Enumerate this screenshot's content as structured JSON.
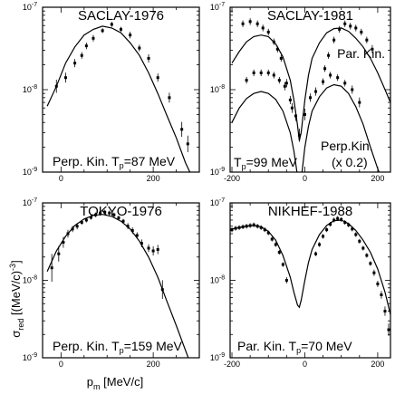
{
  "figure": {
    "ylabel_main": "σ",
    "ylabel_sub": "red",
    "ylabel_rest": " [(MeV/c)",
    "ylabel_sup": "-3",
    "ylabel_end": "]",
    "xlabel_main": "p",
    "xlabel_sub": "m",
    "xlabel_rest": " [MeV/c]"
  },
  "chart_data": [
    {
      "type": "scatter",
      "title": "SACLAY-1976",
      "annotations": [
        {
          "main": "Perp. Kin. T",
          "sub": "p",
          "rest": "=87 MeV"
        }
      ],
      "xlim": [
        -40,
        300
      ],
      "ylim_log": [
        -9,
        -7
      ],
      "x_ticks": [
        "0",
        "200"
      ],
      "x_tick_values": [
        0,
        200
      ],
      "y_ticks": [
        {
          "base": "10",
          "exp": "-7"
        },
        {
          "base": "10",
          "exp": "-8"
        },
        {
          "base": "10",
          "exp": "-9"
        }
      ],
      "y_tick_values": [
        -7,
        -8,
        -9
      ],
      "series": [
        {
          "kind": "points",
          "x": [
            -10,
            10,
            30,
            45,
            55,
            70,
            90,
            110,
            130,
            150,
            170,
            190,
            210,
            235,
            262,
            275
          ],
          "y": [
            1.1e-08,
            1.4e-08,
            2.1e-08,
            2.6e-08,
            3.4e-08,
            4.2e-08,
            5.2e-08,
            6.2e-08,
            5.4e-08,
            4.6e-08,
            3.2e-08,
            2.4e-08,
            1.4e-08,
            8e-09,
            3.3e-09,
            2.2e-09
          ],
          "err": [
            0.08,
            0.06,
            0.05,
            0.04,
            0.04,
            0.04,
            0.03,
            0.03,
            0.03,
            0.04,
            0.04,
            0.05,
            0.05,
            0.06,
            0.09,
            0.1
          ]
        },
        {
          "kind": "curve",
          "x": [
            -30,
            -10,
            10,
            30,
            50,
            70,
            90,
            110,
            130,
            150,
            170,
            190,
            210,
            230,
            250,
            270,
            290
          ],
          "y": [
            6.3e-09,
            1.1e-08,
            2.1e-08,
            3.3e-08,
            4.6e-08,
            5.4e-08,
            5.9e-08,
            5.6e-08,
            4.9e-08,
            3.7e-08,
            2.6e-08,
            1.6e-08,
            9e-09,
            4.8e-09,
            2.6e-09,
            1.3e-09,
            7.5e-10
          ]
        }
      ]
    },
    {
      "type": "scatter",
      "title": "SACLAY-1981",
      "annotations": [
        {
          "main": "Par. Kin.",
          "sub": "",
          "rest": ""
        },
        {
          "main": "T",
          "sub": "p",
          "rest": "=99 MeV"
        },
        {
          "main": "Perp.Kin.",
          "sub": "",
          "rest": ""
        },
        {
          "main": "(x 0.2)",
          "sub": "",
          "rest": ""
        }
      ],
      "xlim": [
        -205,
        235
      ],
      "ylim_log": [
        -9,
        -7
      ],
      "x_ticks": [
        "-200",
        "0",
        "200"
      ],
      "x_tick_values": [
        -200,
        0,
        200
      ],
      "y_ticks": [
        {
          "base": "10",
          "exp": "-7"
        },
        {
          "base": "10",
          "exp": "-8"
        },
        {
          "base": "10",
          "exp": "-9"
        }
      ],
      "y_tick_values": [
        -7,
        -8,
        -9
      ],
      "series": [
        {
          "kind": "points",
          "name_ref": "Par. Kin.",
          "x": [
            -170,
            -150,
            -130,
            -115,
            -100,
            -85,
            -75,
            -65,
            -50,
            -35,
            55,
            65,
            80,
            95,
            110,
            125,
            140,
            155,
            170,
            185
          ],
          "y": [
            6.3e-08,
            6.7e-08,
            6.3e-08,
            5.6e-08,
            5e-08,
            3.8e-08,
            3.1e-08,
            2.4e-08,
            1.2e-08,
            6e-09,
            1.8e-08,
            2.6e-08,
            4e-08,
            5.4e-08,
            6.3e-08,
            5.9e-08,
            5.6e-08,
            5e-08,
            4e-08,
            3.1e-08
          ],
          "err": [
            0.04,
            0.04,
            0.04,
            0.04,
            0.04,
            0.04,
            0.04,
            0.04,
            0.05,
            0.06,
            0.04,
            0.04,
            0.04,
            0.04,
            0.04,
            0.04,
            0.04,
            0.04,
            0.04,
            0.05
          ]
        },
        {
          "kind": "points",
          "name_ref": "Perp.Kin.",
          "x": [
            -160,
            -140,
            -120,
            -100,
            -85,
            -70,
            -55,
            -40,
            -25,
            -15,
            0,
            15,
            30,
            50,
            70,
            90,
            110,
            130,
            150
          ],
          "y": [
            1.3e-08,
            1.6e-08,
            1.6e-08,
            1.6e-08,
            1.5e-08,
            1.3e-08,
            1.1e-08,
            7.5e-09,
            4.8e-09,
            2.8e-09,
            5e-09,
            8e-09,
            9.5e-09,
            1.25e-08,
            1.5e-08,
            1.4e-08,
            1.2e-08,
            1e-08,
            7e-09
          ],
          "err": [
            0.04,
            0.04,
            0.04,
            0.04,
            0.04,
            0.04,
            0.05,
            0.05,
            0.06,
            0.08,
            0.07,
            0.05,
            0.05,
            0.04,
            0.04,
            0.04,
            0.04,
            0.05,
            0.06
          ]
        },
        {
          "kind": "curve",
          "name_ref": "Par. Kin.",
          "x": [
            -200,
            -180,
            -160,
            -140,
            -120,
            -100,
            -80,
            -60,
            -40,
            -30,
            -20,
            -15,
            -10,
            0,
            10,
            20,
            40,
            60,
            80,
            100,
            120,
            140,
            160,
            180,
            200,
            220,
            235
          ],
          "y": [
            2.1e-08,
            2.9e-08,
            3.8e-08,
            4.4e-08,
            4.6e-08,
            4.4e-08,
            3.6e-08,
            2.5e-08,
            1.3e-08,
            7.5e-09,
            3.7e-09,
            2.4e-09,
            3e-09,
            7.5e-09,
            1.5e-08,
            2.4e-08,
            3.7e-08,
            4.9e-08,
            5.5e-08,
            5.6e-08,
            5.1e-08,
            4.2e-08,
            3.3e-08,
            2.4e-08,
            1.6e-08,
            1e-08,
            7e-09
          ]
        },
        {
          "kind": "curve",
          "name_ref": "Perp.Kin.",
          "x": [
            -200,
            -180,
            -160,
            -140,
            -120,
            -100,
            -80,
            -60,
            -40,
            -30,
            -20,
            -15,
            -10,
            0,
            10,
            20,
            40,
            60,
            80,
            100,
            120,
            140,
            160,
            180,
            200,
            220,
            235
          ],
          "y": [
            4e-09,
            6e-09,
            7.8e-09,
            9e-09,
            9.5e-09,
            9e-09,
            7.6e-09,
            5.5e-09,
            3e-09,
            1.8e-09,
            9e-10,
            6.5e-10,
            8e-10,
            2e-09,
            3.6e-09,
            5.5e-09,
            8.2e-09,
            1.05e-08,
            1.15e-08,
            1.1e-08,
            9e-09,
            6.2e-09,
            3.8e-09,
            2e-09,
            1.1e-09,
            6.5e-10,
            4.5e-10
          ]
        }
      ]
    },
    {
      "type": "scatter",
      "title": "TOKYO-1976",
      "annotations": [
        {
          "main": "Perp. Kin. T",
          "sub": "p",
          "rest": "=159 MeV"
        }
      ],
      "xlim": [
        -40,
        300
      ],
      "ylim_log": [
        -9,
        -7
      ],
      "x_ticks": [
        "0",
        "200"
      ],
      "x_tick_values": [
        0,
        200
      ],
      "y_ticks": [
        {
          "base": "10",
          "exp": "-7"
        },
        {
          "base": "10",
          "exp": "-8"
        },
        {
          "base": "10",
          "exp": "-9"
        }
      ],
      "y_tick_values": [
        -7,
        -8,
        -9
      ],
      "series": [
        {
          "kind": "points",
          "x": [
            -20,
            -5,
            5,
            15,
            25,
            35,
            45,
            55,
            65,
            75,
            85,
            95,
            105,
            115,
            125,
            135,
            145,
            155,
            165,
            175,
            190,
            200,
            210,
            220
          ],
          "y": [
            1.45e-08,
            2.2e-08,
            3.1e-08,
            4e-08,
            4.6e-08,
            5e-08,
            5.6e-08,
            6e-08,
            6.5e-08,
            7e-08,
            7.4e-08,
            7.6e-08,
            7.4e-08,
            7e-08,
            6.4e-08,
            5.8e-08,
            5e-08,
            4.4e-08,
            3.8e-08,
            3e-08,
            2.6e-08,
            2.4e-08,
            2.5e-08,
            7.6e-09
          ],
          "err": [
            0.18,
            0.1,
            0.07,
            0.05,
            0.04,
            0.04,
            0.03,
            0.03,
            0.03,
            0.03,
            0.03,
            0.03,
            0.03,
            0.03,
            0.03,
            0.03,
            0.04,
            0.04,
            0.04,
            0.05,
            0.05,
            0.06,
            0.06,
            0.12
          ]
        },
        {
          "kind": "curve",
          "x": [
            -30,
            -10,
            10,
            30,
            50,
            70,
            90,
            110,
            130,
            150,
            170,
            190,
            210,
            230,
            250,
            270,
            290
          ],
          "y": [
            1.3e-08,
            2.4e-08,
            3.7e-08,
            5.1e-08,
            6.2e-08,
            6.9e-08,
            7.1e-08,
            6.7e-08,
            5.8e-08,
            4.6e-08,
            3.2e-08,
            2e-08,
            1.1e-08,
            5.3e-09,
            2.6e-09,
            1.25e-09,
            6e-10
          ]
        }
      ]
    },
    {
      "type": "scatter",
      "title": "NIKHEF-1988",
      "annotations": [
        {
          "main": "Par. Kin. T",
          "sub": "p",
          "rest": "=70 MeV"
        }
      ],
      "xlim": [
        -205,
        235
      ],
      "ylim_log": [
        -9,
        -7
      ],
      "x_ticks": [
        "-200",
        "0",
        "200"
      ],
      "x_tick_values": [
        -200,
        0,
        200
      ],
      "y_ticks": [
        {
          "base": "10",
          "exp": "-7"
        },
        {
          "base": "10",
          "exp": "-8"
        },
        {
          "base": "10",
          "exp": "-9"
        }
      ],
      "y_tick_values": [
        -7,
        -8,
        -9
      ],
      "series": [
        {
          "kind": "points",
          "x": [
            -200,
            -190,
            -180,
            -170,
            -160,
            -150,
            -140,
            -130,
            -120,
            -110,
            -100,
            -90,
            -80,
            -70,
            -60,
            -50,
            30,
            40,
            50,
            60,
            70,
            80,
            90,
            100,
            110,
            120,
            130,
            140,
            150,
            160,
            170,
            180,
            190,
            200,
            210,
            220,
            230
          ],
          "y": [
            4.5e-08,
            4.7e-08,
            4.8e-08,
            4.9e-08,
            5e-08,
            5.1e-08,
            5.2e-08,
            5e-08,
            4.8e-08,
            4.5e-08,
            4.1e-08,
            3.4e-08,
            2.9e-08,
            2.3e-08,
            1.6e-08,
            1e-08,
            2.2e-08,
            2.9e-08,
            3.7e-08,
            4.5e-08,
            5.3e-08,
            6e-08,
            6.3e-08,
            6.1e-08,
            5.6e-08,
            5.2e-08,
            4.6e-08,
            3.9e-08,
            3.2e-08,
            2.6e-08,
            2.1e-08,
            1.65e-08,
            1.25e-08,
            9e-09,
            6.5e-09,
            4e-09,
            2.3e-09
          ],
          "err": [
            0.03,
            0.03,
            0.03,
            0.03,
            0.03,
            0.03,
            0.03,
            0.03,
            0.03,
            0.03,
            0.03,
            0.03,
            0.03,
            0.03,
            0.03,
            0.04,
            0.03,
            0.03,
            0.03,
            0.03,
            0.03,
            0.03,
            0.03,
            0.03,
            0.03,
            0.03,
            0.03,
            0.03,
            0.03,
            0.03,
            0.03,
            0.03,
            0.04,
            0.04,
            0.05,
            0.06,
            0.08
          ]
        },
        {
          "kind": "curve",
          "x": [
            -200,
            -180,
            -160,
            -140,
            -120,
            -100,
            -80,
            -60,
            -40,
            -30,
            -20,
            -15,
            -10,
            0,
            10,
            20,
            40,
            60,
            80,
            100,
            120,
            140,
            160,
            180,
            200,
            220,
            235
          ],
          "y": [
            4.6e-08,
            4.8e-08,
            5e-08,
            5.1e-08,
            4.9e-08,
            4.3e-08,
            3.3e-08,
            2.1e-08,
            1.1e-08,
            7e-09,
            4.8e-09,
            4.5e-09,
            5.5e-09,
            1e-08,
            1.7e-08,
            2.5e-08,
            3.9e-08,
            5.1e-08,
            5.9e-08,
            6e-08,
            5.4e-08,
            4.4e-08,
            3.3e-08,
            2.3e-08,
            1.4e-08,
            7e-09,
            3.6e-09
          ]
        }
      ]
    }
  ]
}
